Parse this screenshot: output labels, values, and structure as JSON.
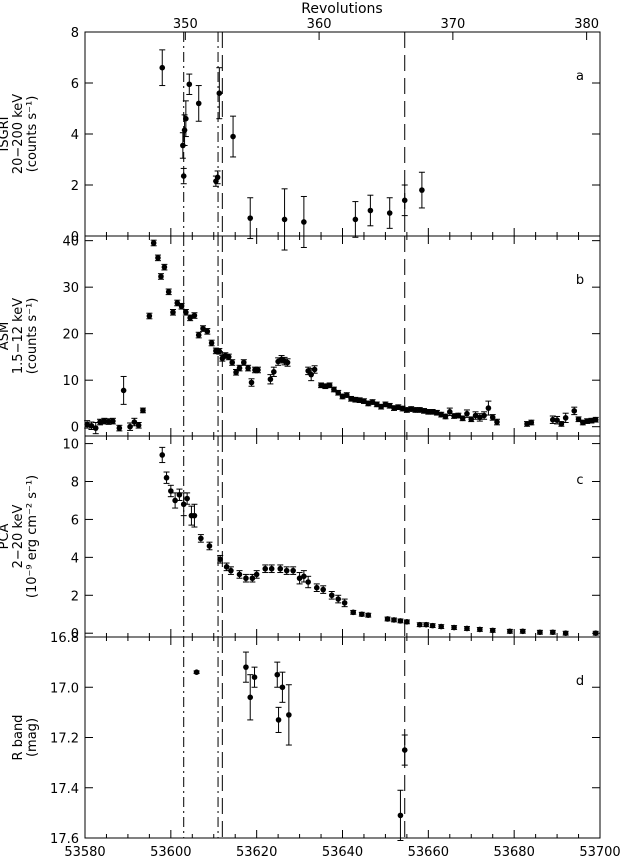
{
  "chart_data": {
    "type": "scatter",
    "top_axis": {
      "label": "Revolutions",
      "min": 342.5,
      "max": 381.0,
      "ticks": [
        350,
        360,
        370,
        380
      ]
    },
    "bottom_axis": {
      "label": "",
      "min": 53580,
      "max": 53700,
      "ticks": [
        53580,
        53600,
        53620,
        53640,
        53660,
        53680,
        53700
      ]
    },
    "vertical_lines": [
      {
        "x": 53603,
        "style": "dash-dot"
      },
      {
        "x": 53611,
        "style": "dash-dot"
      },
      {
        "x": 53612,
        "style": "long-dash"
      },
      {
        "x": 53654.5,
        "style": "long-dash"
      }
    ],
    "panels": [
      {
        "id": "a",
        "panel_label": "a",
        "ylabel_lines": [
          "ISGRI",
          "20−200 keV",
          "(counts s⁻¹)"
        ],
        "ylim": [
          0,
          8
        ],
        "yticks": [
          0,
          2,
          4,
          6,
          8
        ],
        "tick_labels": [
          "0",
          "2",
          "4",
          "6",
          "8"
        ],
        "points": [
          [
            53598,
            6.6,
            0.7
          ],
          [
            53602.8,
            3.55,
            0.5
          ],
          [
            53603,
            2.35,
            0.3
          ],
          [
            53603.2,
            4.15,
            0.6
          ],
          [
            53603.5,
            4.6,
            0.7
          ],
          [
            53604.3,
            5.95,
            0.4
          ],
          [
            53606.5,
            5.2,
            0.7
          ],
          [
            53610.5,
            2.15,
            0.2
          ],
          [
            53610.9,
            2.3,
            0.25
          ],
          [
            53611.3,
            5.6,
            1.0
          ],
          [
            53614.5,
            3.9,
            0.8
          ],
          [
            53618.5,
            0.7,
            0.8
          ],
          [
            53626.5,
            0.65,
            1.2
          ],
          [
            53631,
            0.55,
            1.0
          ],
          [
            53643,
            0.65,
            0.7
          ],
          [
            53646.5,
            1.0,
            0.6
          ],
          [
            53651,
            0.9,
            0.6
          ],
          [
            53654.5,
            1.4,
            0.6
          ],
          [
            53658.5,
            1.8,
            0.7
          ]
        ]
      },
      {
        "id": "b",
        "panel_label": "b",
        "ylabel_lines": [
          "ASM",
          "1.5−12 keV",
          "(counts s⁻¹)"
        ],
        "ylim": [
          -2,
          41
        ],
        "yticks": [
          0,
          10,
          20,
          30,
          40
        ],
        "tick_labels": [
          "0",
          "10",
          "20",
          "30",
          "40"
        ],
        "points": [
          [
            53580.5,
            0.5,
            0.8
          ],
          [
            53581.5,
            0.2,
            0.8
          ],
          [
            53582.5,
            -0.3,
            1.2
          ],
          [
            53583.5,
            1.0,
            0.6
          ],
          [
            53584.5,
            1.2,
            0.6
          ],
          [
            53585.5,
            1.1,
            0.6
          ],
          [
            53586.5,
            1.2,
            0.6
          ],
          [
            53588,
            -0.3,
            0.6
          ],
          [
            53589,
            7.8,
            3.0
          ],
          [
            53590.5,
            0.0,
            0.8
          ],
          [
            53591.5,
            1.0,
            0.8
          ],
          [
            53592.5,
            0.3,
            0.6
          ],
          [
            53593.5,
            3.5,
            0.5
          ],
          [
            53595,
            23.8,
            0.6
          ],
          [
            53596,
            39.5,
            0.6
          ],
          [
            53597,
            36.3,
            0.6
          ],
          [
            53597.7,
            32.3,
            0.6
          ],
          [
            53598.5,
            34.3,
            0.6
          ],
          [
            53599.5,
            29.0,
            0.6
          ],
          [
            53600.5,
            24.6,
            0.6
          ],
          [
            53601.5,
            26.6,
            0.6
          ],
          [
            53602.5,
            25.9,
            0.6
          ],
          [
            53603.5,
            24.6,
            0.6
          ],
          [
            53604.5,
            23.4,
            0.6
          ],
          [
            53605.5,
            23.9,
            0.6
          ],
          [
            53606.5,
            19.7,
            0.6
          ],
          [
            53607.5,
            21.1,
            0.6
          ],
          [
            53608.5,
            20.5,
            0.6
          ],
          [
            53609.5,
            18.0,
            0.6
          ],
          [
            53610.5,
            16.3,
            0.6
          ],
          [
            53611.3,
            16.2,
            0.6
          ],
          [
            53612,
            14.7,
            0.6
          ],
          [
            53612.7,
            15.3,
            0.6
          ],
          [
            53613.5,
            15.0,
            0.6
          ],
          [
            53614.3,
            13.8,
            0.6
          ],
          [
            53615.2,
            11.7,
            0.6
          ],
          [
            53616,
            12.6,
            0.6
          ],
          [
            53617,
            13.8,
            0.6
          ],
          [
            53618,
            12.6,
            0.6
          ],
          [
            53618.8,
            9.5,
            0.8
          ],
          [
            53619.6,
            12.2,
            0.6
          ],
          [
            53620.3,
            12.2,
            0.6
          ],
          [
            53623.2,
            10.2,
            1.0
          ],
          [
            53624,
            11.8,
            1.0
          ],
          [
            53625,
            14.0,
            0.8
          ],
          [
            53625.8,
            14.5,
            0.8
          ],
          [
            53626.5,
            14.1,
            0.8
          ],
          [
            53627.2,
            13.8,
            0.8
          ],
          [
            53632,
            12.0,
            0.8
          ],
          [
            53632.7,
            11.2,
            1.3
          ],
          [
            53633.5,
            12.3,
            0.8
          ],
          [
            53635,
            8.9,
            0.5
          ],
          [
            53636,
            8.7,
            0.5
          ],
          [
            53637,
            8.9,
            0.5
          ],
          [
            53638,
            8.0,
            0.5
          ],
          [
            53639,
            7.3,
            0.5
          ],
          [
            53640,
            6.5,
            0.5
          ],
          [
            53641,
            6.8,
            0.5
          ],
          [
            53642,
            6.0,
            0.5
          ],
          [
            53643,
            5.8,
            0.5
          ],
          [
            53644,
            5.7,
            0.5
          ],
          [
            53645,
            5.5,
            0.5
          ],
          [
            53646,
            5.0,
            0.5
          ],
          [
            53647,
            5.3,
            0.5
          ],
          [
            53648,
            4.8,
            0.5
          ],
          [
            53649,
            4.3,
            0.5
          ],
          [
            53650,
            4.8,
            0.5
          ],
          [
            53651,
            4.5,
            0.5
          ],
          [
            53652,
            4.0,
            0.5
          ],
          [
            53653,
            4.2,
            0.5
          ],
          [
            53654,
            3.9,
            0.5
          ],
          [
            53655,
            3.6,
            0.5
          ],
          [
            53656,
            3.8,
            0.5
          ],
          [
            53657,
            3.6,
            0.5
          ],
          [
            53658,
            3.6,
            0.5
          ],
          [
            53659,
            3.4,
            0.5
          ],
          [
            53660,
            3.2,
            0.5
          ],
          [
            53661,
            3.2,
            0.5
          ],
          [
            53662,
            3.0,
            0.5
          ],
          [
            53663,
            2.6,
            0.5
          ],
          [
            53664,
            2.2,
            0.5
          ],
          [
            53665,
            3.2,
            0.8
          ],
          [
            53666,
            2.3,
            0.5
          ],
          [
            53667,
            2.4,
            0.5
          ],
          [
            53668,
            1.8,
            0.5
          ],
          [
            53669,
            2.8,
            0.8
          ],
          [
            53670,
            1.6,
            0.5
          ],
          [
            53671,
            2.4,
            0.8
          ],
          [
            53672,
            2.0,
            0.8
          ],
          [
            53673,
            2.4,
            0.8
          ],
          [
            53674,
            4.0,
            1.5
          ],
          [
            53675,
            2.0,
            0.6
          ],
          [
            53676,
            1.0,
            0.6
          ],
          [
            53683,
            0.6,
            0.5
          ],
          [
            53684,
            0.9,
            0.5
          ],
          [
            53689,
            1.5,
            0.8
          ],
          [
            53690,
            1.4,
            0.8
          ],
          [
            53691,
            0.6,
            0.5
          ],
          [
            53692,
            1.9,
            1.0
          ],
          [
            53694,
            3.4,
            0.8
          ],
          [
            53695,
            1.6,
            0.5
          ],
          [
            53696,
            0.9,
            0.5
          ],
          [
            53697,
            1.2,
            0.5
          ],
          [
            53698,
            1.3,
            0.5
          ],
          [
            53699,
            1.5,
            0.5
          ]
        ]
      },
      {
        "id": "c",
        "panel_label": "c",
        "ylabel_lines": [
          "PCA",
          "2−20 keV",
          "(10⁻⁹ erg cm⁻² s⁻¹)"
        ],
        "ylim": [
          -0.2,
          10.4
        ],
        "yticks": [
          0,
          2,
          4,
          6,
          8,
          10
        ],
        "tick_labels": [
          "0",
          "2",
          "4",
          "6",
          "8",
          "10"
        ],
        "points": [
          [
            53598,
            9.4,
            0.4
          ],
          [
            53599,
            8.2,
            0.3
          ],
          [
            53600,
            7.5,
            0.3
          ],
          [
            53601,
            7.0,
            0.4
          ],
          [
            53602,
            7.3,
            0.3
          ],
          [
            53603,
            6.8,
            0.6
          ],
          [
            53603.8,
            7.1,
            0.3
          ],
          [
            53604.8,
            6.2,
            0.5
          ],
          [
            53605.5,
            6.2,
            0.6
          ],
          [
            53607,
            5.0,
            0.2
          ],
          [
            53609,
            4.6,
            0.2
          ],
          [
            53611.5,
            3.9,
            0.2
          ],
          [
            53613,
            3.5,
            0.2
          ],
          [
            53614,
            3.3,
            0.2
          ],
          [
            53616,
            3.1,
            0.2
          ],
          [
            53617.5,
            2.9,
            0.2
          ],
          [
            53619,
            2.9,
            0.2
          ],
          [
            53620,
            3.1,
            0.2
          ],
          [
            53622,
            3.4,
            0.2
          ],
          [
            53623.5,
            3.4,
            0.2
          ],
          [
            53625.5,
            3.4,
            0.2
          ],
          [
            53627,
            3.3,
            0.2
          ],
          [
            53628.5,
            3.3,
            0.2
          ],
          [
            53630,
            2.9,
            0.3
          ],
          [
            53631,
            3.0,
            0.3
          ],
          [
            53632,
            2.7,
            0.3
          ],
          [
            53634,
            2.4,
            0.2
          ],
          [
            53635.5,
            2.3,
            0.2
          ],
          [
            53637.5,
            2.0,
            0.2
          ],
          [
            53639,
            1.8,
            0.2
          ],
          [
            53640.5,
            1.6,
            0.2
          ],
          [
            53642.5,
            1.1,
            0.1
          ],
          [
            53644.5,
            1.0,
            0.1
          ],
          [
            53646,
            0.95,
            0.1
          ],
          [
            53650.5,
            0.75,
            0.1
          ],
          [
            53652,
            0.7,
            0.1
          ],
          [
            53653.5,
            0.65,
            0.1
          ],
          [
            53655,
            0.6,
            0.1
          ],
          [
            53658,
            0.45,
            0.1
          ],
          [
            53659.5,
            0.45,
            0.1
          ],
          [
            53661,
            0.4,
            0.1
          ],
          [
            53663,
            0.35,
            0.1
          ],
          [
            53666,
            0.3,
            0.1
          ],
          [
            53669,
            0.25,
            0.1
          ],
          [
            53672,
            0.2,
            0.1
          ],
          [
            53675,
            0.15,
            0.1
          ],
          [
            53679,
            0.1,
            0.1
          ],
          [
            53682,
            0.1,
            0.1
          ],
          [
            53686,
            0.05,
            0.1
          ],
          [
            53689,
            0.05,
            0.1
          ],
          [
            53692,
            0.0,
            0.1
          ],
          [
            53699,
            0.0,
            0.1
          ]
        ]
      },
      {
        "id": "d",
        "panel_label": "d",
        "ylabel_lines": [
          "R band",
          "(mag)"
        ],
        "ylim": [
          17.6,
          16.8
        ],
        "yticks": [
          16.8,
          17.0,
          17.2,
          17.4,
          17.6
        ],
        "tick_labels": [
          "16.8",
          "17.0",
          "17.2",
          "17.4",
          "17.6"
        ],
        "points": [
          [
            53606,
            16.94,
            0.005
          ],
          [
            53617.5,
            16.92,
            0.06
          ],
          [
            53618.5,
            17.04,
            0.09
          ],
          [
            53619.5,
            16.96,
            0.04
          ],
          [
            53624.8,
            16.95,
            0.05
          ],
          [
            53625.1,
            17.13,
            0.05
          ],
          [
            53626,
            17.0,
            0.06
          ],
          [
            53627.5,
            17.11,
            0.12
          ],
          [
            53653.5,
            17.51,
            0.1
          ],
          [
            53654.5,
            17.25,
            0.06
          ]
        ]
      }
    ]
  }
}
